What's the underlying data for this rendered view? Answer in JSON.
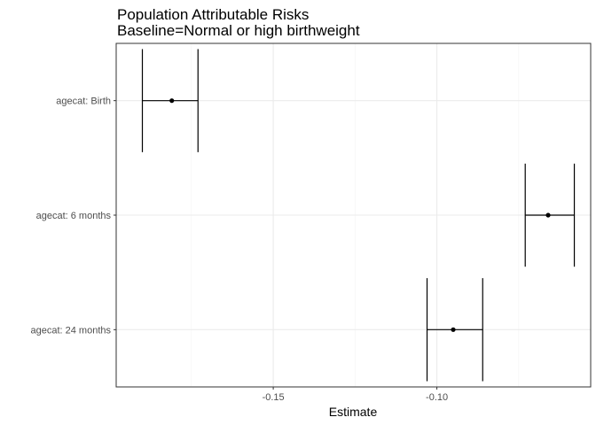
{
  "chart_data": {
    "type": "errorbar",
    "title": "Population Attributable Risks",
    "subtitle": "Baseline=Normal or high birthweight",
    "xlabel": "Estimate",
    "ylabel": "",
    "xlim": [
      -0.198,
      -0.053
    ],
    "xticks": [
      -0.15,
      -0.1
    ],
    "xtick_labels": [
      "-0.15",
      "-0.10"
    ],
    "categories": [
      "agecat: Birth",
      "agecat: 6 months",
      "agecat: 24 months"
    ],
    "points": [
      {
        "category": "agecat: Birth",
        "estimate": -0.181,
        "lower": -0.19,
        "upper": -0.173
      },
      {
        "category": "agecat: 6 months",
        "estimate": -0.066,
        "lower": -0.073,
        "upper": -0.058
      },
      {
        "category": "agecat: 24 months",
        "estimate": -0.095,
        "lower": -0.103,
        "upper": -0.086
      }
    ],
    "grid": true,
    "legend": "none",
    "colors": {
      "point": "#000000",
      "errorbar": "#000000",
      "panel_border": "#333333",
      "grid_major": "#ebebeb",
      "grid_minor": "#f5f5f5",
      "tick_label": "#4d4d4d"
    }
  }
}
